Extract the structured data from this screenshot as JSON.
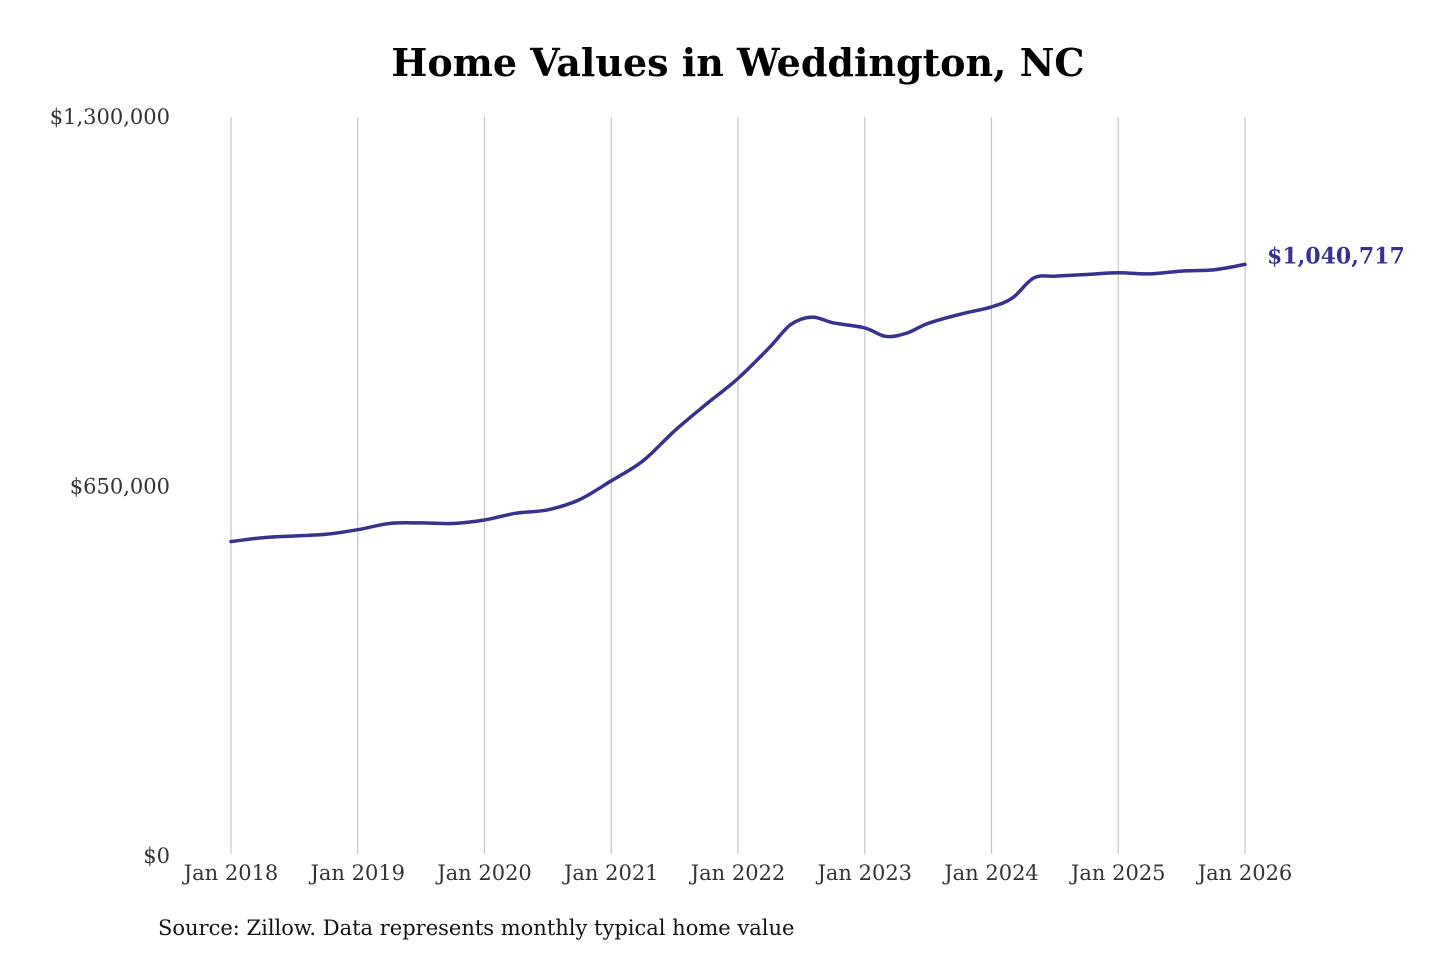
{
  "chart_data": {
    "type": "line",
    "title": "Home Values in Weddington, NC",
    "source": "Source: Zillow. Data represents monthly typical home value",
    "xlabel": "",
    "ylabel": "",
    "ylim": [
      0,
      1300000
    ],
    "y_ticks": [
      {
        "value": 0,
        "label": "$0"
      },
      {
        "value": 650000,
        "label": "$650,000"
      },
      {
        "value": 1300000,
        "label": "$1,300,000"
      }
    ],
    "x_ticks": [
      {
        "value": "2018-01",
        "label": "Jan 2018"
      },
      {
        "value": "2019-01",
        "label": "Jan 2019"
      },
      {
        "value": "2020-01",
        "label": "Jan 2020"
      },
      {
        "value": "2021-01",
        "label": "Jan 2021"
      },
      {
        "value": "2022-01",
        "label": "Jan 2022"
      },
      {
        "value": "2023-01",
        "label": "Jan 2023"
      },
      {
        "value": "2024-01",
        "label": "Jan 2024"
      },
      {
        "value": "2025-01",
        "label": "Jan 2025"
      },
      {
        "value": "2026-01",
        "label": "Jan 2026"
      }
    ],
    "grid": "vertical",
    "line_color": "#37318f",
    "end_label": "$1,040,717",
    "series": [
      {
        "points": [
          {
            "x": "2018-01",
            "y": 553000
          },
          {
            "x": "2018-04",
            "y": 560000
          },
          {
            "x": "2018-07",
            "y": 563000
          },
          {
            "x": "2018-10",
            "y": 566000
          },
          {
            "x": "2019-01",
            "y": 574000
          },
          {
            "x": "2019-04",
            "y": 585000
          },
          {
            "x": "2019-07",
            "y": 586000
          },
          {
            "x": "2019-10",
            "y": 585000
          },
          {
            "x": "2020-01",
            "y": 591000
          },
          {
            "x": "2020-04",
            "y": 603000
          },
          {
            "x": "2020-07",
            "y": 609000
          },
          {
            "x": "2020-10",
            "y": 627000
          },
          {
            "x": "2021-01",
            "y": 660000
          },
          {
            "x": "2021-04",
            "y": 695000
          },
          {
            "x": "2021-07",
            "y": 748000
          },
          {
            "x": "2021-10",
            "y": 795000
          },
          {
            "x": "2022-01",
            "y": 840000
          },
          {
            "x": "2022-04",
            "y": 895000
          },
          {
            "x": "2022-06",
            "y": 935000
          },
          {
            "x": "2022-08",
            "y": 948000
          },
          {
            "x": "2022-10",
            "y": 938000
          },
          {
            "x": "2023-01",
            "y": 929000
          },
          {
            "x": "2023-03",
            "y": 914000
          },
          {
            "x": "2023-05",
            "y": 920000
          },
          {
            "x": "2023-07",
            "y": 937000
          },
          {
            "x": "2023-10",
            "y": 953000
          },
          {
            "x": "2024-01",
            "y": 966000
          },
          {
            "x": "2024-03",
            "y": 982000
          },
          {
            "x": "2024-05",
            "y": 1017000
          },
          {
            "x": "2024-07",
            "y": 1020000
          },
          {
            "x": "2024-10",
            "y": 1023000
          },
          {
            "x": "2025-01",
            "y": 1026000
          },
          {
            "x": "2025-04",
            "y": 1024000
          },
          {
            "x": "2025-07",
            "y": 1029000
          },
          {
            "x": "2025-10",
            "y": 1031000
          },
          {
            "x": "2026-01",
            "y": 1040717
          }
        ]
      }
    ]
  }
}
